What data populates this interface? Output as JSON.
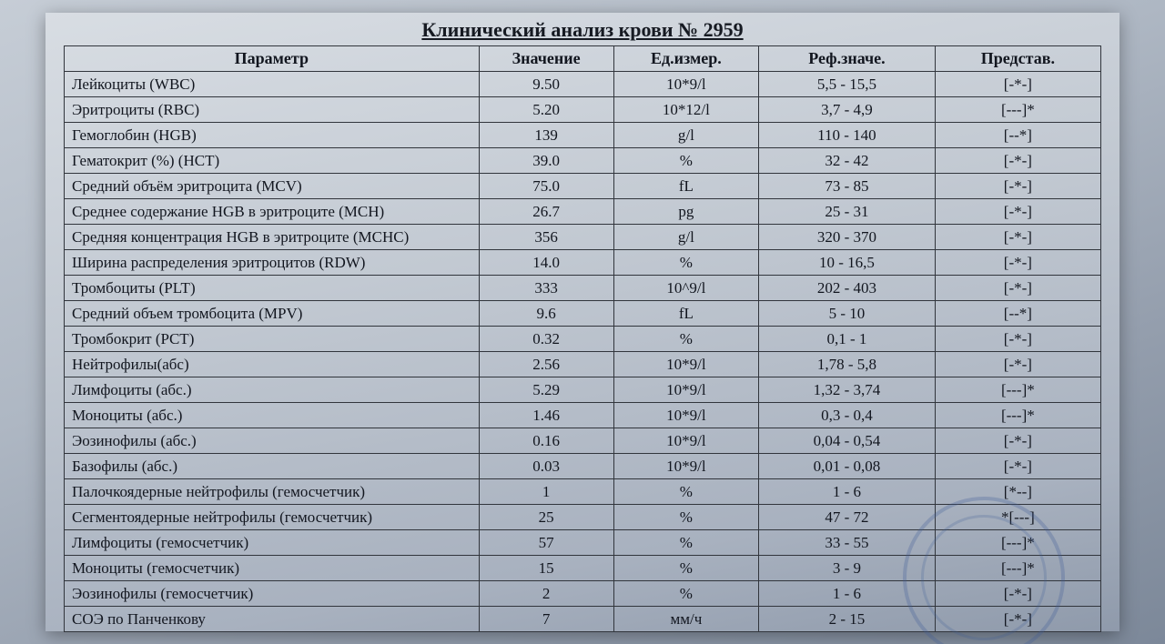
{
  "title": "Клинический анализ крови № 2959",
  "headers": {
    "param": "Параметр",
    "value": "Значение",
    "unit": "Ед.измер.",
    "ref": "Реф.значе.",
    "rep": "Представ."
  },
  "rows": [
    {
      "param": "Лейкоциты (WBC)",
      "value": "9.50",
      "unit": "10*9/l",
      "ref": "5,5 - 15,5",
      "rep": "[-*-]"
    },
    {
      "param": "Эритроциты (RBC)",
      "value": "5.20",
      "unit": "10*12/l",
      "ref": "3,7 - 4,9",
      "rep": "[---]*"
    },
    {
      "param": "Гемоглобин (HGB)",
      "value": "139",
      "unit": "g/l",
      "ref": "110 - 140",
      "rep": "[--*]"
    },
    {
      "param": "Гематокрит (%) (HCT)",
      "value": "39.0",
      "unit": "%",
      "ref": "32 - 42",
      "rep": "[-*-]"
    },
    {
      "param": "Средний объём эритроцита (MCV)",
      "value": "75.0",
      "unit": "fL",
      "ref": "73 - 85",
      "rep": "[-*-]"
    },
    {
      "param": "Среднее содержание HGB в эритроците (MCH)",
      "value": "26.7",
      "unit": "pg",
      "ref": "25 - 31",
      "rep": "[-*-]"
    },
    {
      "param": "Средняя концентрация HGB в эритроците (MCHC)",
      "value": "356",
      "unit": "g/l",
      "ref": "320 - 370",
      "rep": "[-*-]"
    },
    {
      "param": "Ширина распределения эритроцитов (RDW)",
      "value": "14.0",
      "unit": "%",
      "ref": "10 - 16,5",
      "rep": "[-*-]"
    },
    {
      "param": "Тромбоциты (PLT)",
      "value": "333",
      "unit": "10^9/l",
      "ref": "202 - 403",
      "rep": "[-*-]"
    },
    {
      "param": "Средний объем тромбоцита (MPV)",
      "value": "9.6",
      "unit": "fL",
      "ref": "5 - 10",
      "rep": "[--*]"
    },
    {
      "param": "Тромбокрит (PCT)",
      "value": "0.32",
      "unit": "%",
      "ref": "0,1 - 1",
      "rep": "[-*-]"
    },
    {
      "param": "Нейтрофилы(абс)",
      "value": "2.56",
      "unit": "10*9/l",
      "ref": "1,78 - 5,8",
      "rep": "[-*-]"
    },
    {
      "param": "Лимфоциты (абс.)",
      "value": "5.29",
      "unit": "10*9/l",
      "ref": "1,32 - 3,74",
      "rep": "[---]*"
    },
    {
      "param": "Моноциты (абс.)",
      "value": "1.46",
      "unit": "10*9/l",
      "ref": "0,3 - 0,4",
      "rep": "[---]*"
    },
    {
      "param": "Эозинофилы (абс.)",
      "value": "0.16",
      "unit": "10*9/l",
      "ref": "0,04 - 0,54",
      "rep": "[-*-]"
    },
    {
      "param": "Базофилы (абс.)",
      "value": "0.03",
      "unit": "10*9/l",
      "ref": "0,01 - 0,08",
      "rep": "[-*-]"
    },
    {
      "param": "Палочкоядерные нейтрофилы (гемосчетчик)",
      "value": "1",
      "unit": "%",
      "ref": "1 - 6",
      "rep": "[*--]"
    },
    {
      "param": "Сегментоядерные нейтрофилы (гемосчетчик)",
      "value": "25",
      "unit": "%",
      "ref": "47 - 72",
      "rep": "*[---]"
    },
    {
      "param": "Лимфоциты (гемосчетчик)",
      "value": "57",
      "unit": "%",
      "ref": "33 - 55",
      "rep": "[---]*"
    },
    {
      "param": "Моноциты (гемосчетчик)",
      "value": "15",
      "unit": "%",
      "ref": "3 - 9",
      "rep": "[---]*"
    },
    {
      "param": "Эозинофилы (гемосчетчик)",
      "value": "2",
      "unit": "%",
      "ref": "1 - 6",
      "rep": "[-*-]"
    },
    {
      "param": "СОЭ по Панченкову",
      "value": "7",
      "unit": "мм/ч",
      "ref": "2 - 15",
      "rep": "[-*-]"
    }
  ]
}
